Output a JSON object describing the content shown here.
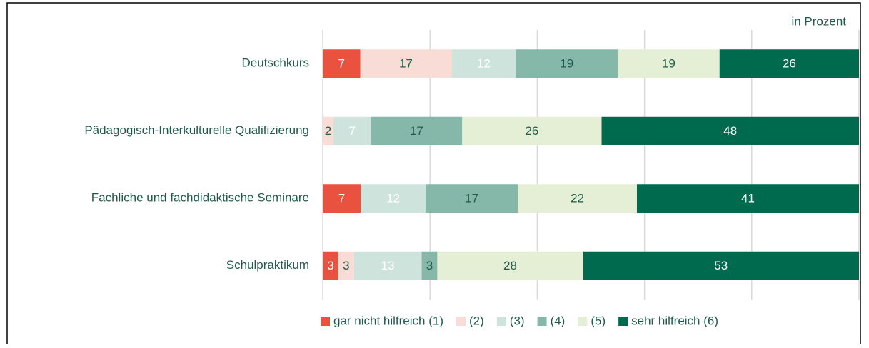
{
  "chart_data": {
    "type": "bar",
    "orientation": "horizontal",
    "stacking": "percent",
    "annotation": "in Prozent",
    "categories": [
      "Deutschkurs",
      "Pädagogisch-Interkulturelle Qualifizierung",
      "Fachliche und fachdidaktische Seminare",
      "Schulpraktikum"
    ],
    "series": [
      {
        "name": "gar nicht hilfreich (1)",
        "color": "#e8523f",
        "label_color": "#ffffff",
        "values": [
          7,
          0,
          7,
          3
        ]
      },
      {
        "name": "(2)",
        "color": "#fadcd6",
        "label_color": "#1f5a4a",
        "values": [
          17,
          2,
          0,
          3
        ]
      },
      {
        "name": "(3)",
        "color": "#cfe3dd",
        "label_color": "#ffffff",
        "values": [
          12,
          7,
          12,
          13
        ]
      },
      {
        "name": "(4)",
        "color": "#85b8a8",
        "label_color": "#1f5a4a",
        "values": [
          19,
          17,
          17,
          3
        ]
      },
      {
        "name": "(5)",
        "color": "#e5efd5",
        "label_color": "#1f5a4a",
        "values": [
          19,
          26,
          22,
          28
        ]
      },
      {
        "name": "sehr hilfreich (6)",
        "color": "#006a4e",
        "label_color": "#ffffff",
        "values": [
          26,
          48,
          41,
          53
        ]
      }
    ],
    "xlim": [
      0,
      100
    ],
    "xticks": [
      0,
      20,
      40,
      60,
      80,
      100
    ],
    "grid": true,
    "legend": "bottom"
  }
}
